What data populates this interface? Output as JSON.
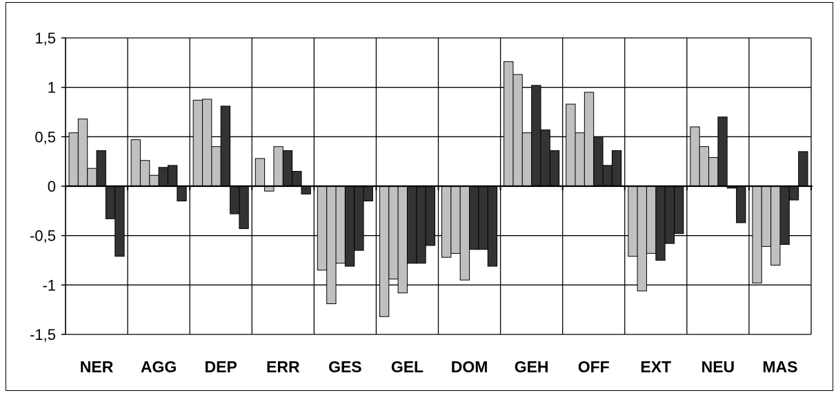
{
  "chart_data": {
    "type": "bar",
    "title": "",
    "xlabel": "",
    "ylabel": "",
    "ylim": [
      -1.5,
      1.5
    ],
    "yticks": [
      1.5,
      1,
      0.5,
      0,
      -0.5,
      -1,
      -1.5
    ],
    "ytick_labels": [
      "1,5",
      "1",
      "0,5",
      "0",
      "-0,5",
      "-1",
      "-1,5"
    ],
    "grid": true,
    "legend": "none",
    "categories": [
      "NER",
      "AGG",
      "DEP",
      "ERR",
      "GES",
      "GEL",
      "DOM",
      "GEH",
      "OFF",
      "EXT",
      "NEU",
      "MAS"
    ],
    "series": [
      {
        "color": "#c0c0c0",
        "values": [
          0.54,
          0.47,
          0.87,
          0.28,
          -0.85,
          -1.32,
          -0.72,
          1.26,
          0.83,
          -0.71,
          0.6,
          -0.98
        ]
      },
      {
        "color": "#c0c0c0",
        "values": [
          0.68,
          0.26,
          0.88,
          -0.05,
          -1.19,
          -0.94,
          -0.68,
          1.13,
          0.54,
          -1.06,
          0.4,
          -0.61
        ]
      },
      {
        "color": "#c0c0c0",
        "values": [
          0.18,
          0.11,
          0.4,
          0.4,
          -0.78,
          -1.08,
          -0.95,
          0.54,
          0.95,
          -0.68,
          0.29,
          -0.8
        ]
      },
      {
        "color": "#333333",
        "values": [
          0.36,
          0.19,
          0.81,
          0.36,
          -0.81,
          -0.78,
          -0.64,
          1.02,
          0.5,
          -0.75,
          0.7,
          -0.59
        ]
      },
      {
        "color": "#333333",
        "values": [
          -0.33,
          0.21,
          -0.28,
          0.15,
          -0.65,
          -0.78,
          -0.64,
          0.57,
          0.21,
          -0.58,
          -0.02,
          -0.14
        ]
      },
      {
        "color": "#333333",
        "values": [
          -0.71,
          -0.15,
          -0.43,
          -0.08,
          -0.15,
          -0.6,
          -0.81,
          0.36,
          0.36,
          -0.48,
          -0.37,
          0.35
        ]
      }
    ]
  }
}
